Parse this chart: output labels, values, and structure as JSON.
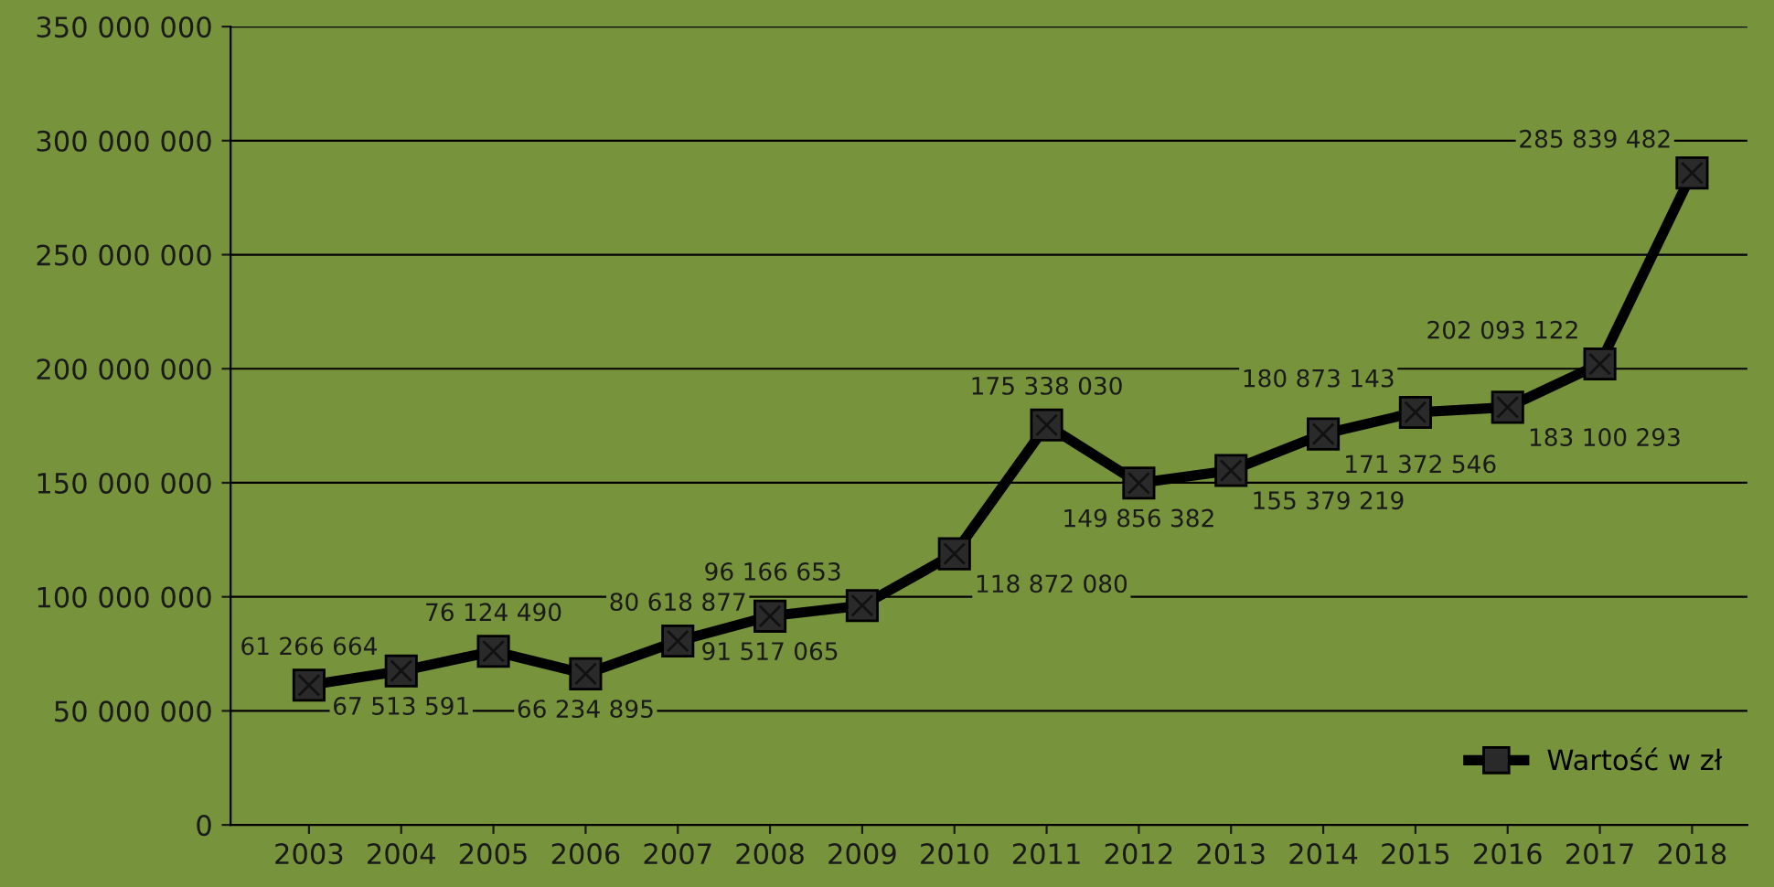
{
  "chart_data": {
    "type": "line",
    "categories": [
      "2003",
      "2004",
      "2005",
      "2006",
      "2007",
      "2008",
      "2009",
      "2010",
      "2011",
      "2012",
      "2013",
      "2014",
      "2015",
      "2016",
      "2017",
      "2018"
    ],
    "series": [
      {
        "name": "Wartość w zł",
        "color": "#000000",
        "values": [
          61266664,
          67513591,
          76124490,
          66234895,
          80618877,
          91517065,
          96166653,
          118872080,
          175338030,
          149856382,
          155379219,
          171372546,
          180873143,
          183100293,
          202093122,
          285839482
        ]
      }
    ],
    "ylim": [
      0,
      350000000
    ],
    "yticks": [
      {
        "value": 0,
        "label": "0"
      },
      {
        "value": 50000000,
        "label": "50 000 000"
      },
      {
        "value": 100000000,
        "label": "100 000 000"
      },
      {
        "value": 150000000,
        "label": "150 000 000"
      },
      {
        "value": 200000000,
        "label": "200 000 000"
      },
      {
        "value": 250000000,
        "label": "250 000 000"
      },
      {
        "value": 300000000,
        "label": "300 000 000"
      },
      {
        "value": 350000000,
        "label": "350 000 000"
      }
    ],
    "grid": "y",
    "legend": "bottom right",
    "marker": "square",
    "line_style": "solid",
    "data_labels": true
  }
}
